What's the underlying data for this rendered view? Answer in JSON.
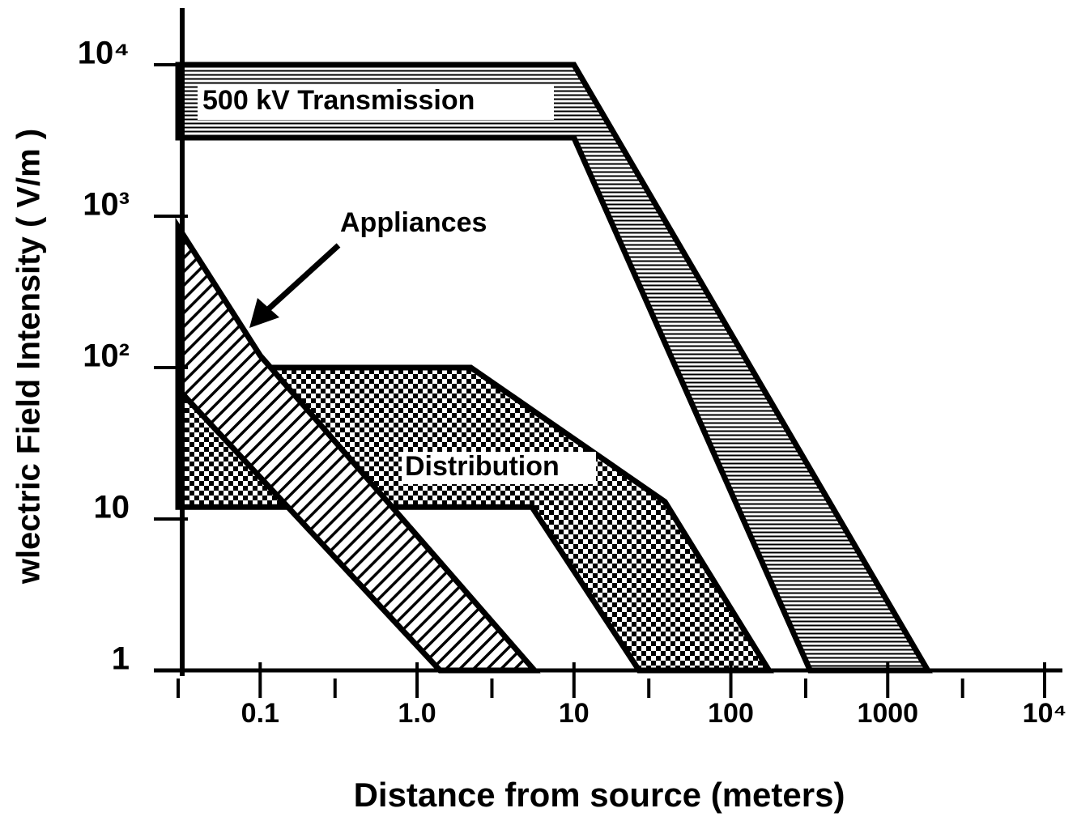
{
  "chart_data": {
    "type": "region",
    "xlabel": "Distance  from  source  (meters)",
    "ylabel": "wlectric  Field  Intensity  ( V/m )",
    "log_x": true,
    "log_y": true,
    "xlim": [
      0.03,
      10000
    ],
    "ylim": [
      1,
      10000
    ],
    "xticks": [
      0.1,
      {
        "value": 1,
        "label": "1.0"
      },
      10,
      100,
      1000,
      {
        "value": 10000,
        "label": "10⁴"
      }
    ],
    "xminorticks": [
      0.03,
      0.3,
      3,
      30,
      300,
      3000
    ],
    "yticks": [
      1,
      10,
      {
        "value": 100,
        "label": "10²"
      },
      {
        "value": 1000,
        "label": "10³"
      },
      {
        "value": 10000,
        "label": "10⁴"
      }
    ],
    "series": [
      {
        "name": "500  kV  Transmission",
        "color": "#000000",
        "pattern": "horizontal",
        "x": [
          0.03,
          10,
          1800,
          320,
          10,
          0.03
        ],
        "values": [
          10000,
          10000,
          1,
          1,
          3300,
          3300
        ]
      },
      {
        "name": "Distribution",
        "color": "#000000",
        "pattern": "checker",
        "x": [
          0.03,
          2.2,
          38,
          175,
          26,
          5.4,
          0.03
        ],
        "values": [
          100,
          100,
          13,
          1,
          1,
          12,
          12
        ]
      },
      {
        "name": "Appliances",
        "color": "#000000",
        "pattern": "diagonal",
        "x": [
          0.03,
          0.1,
          5.6,
          1.4,
          0.03
        ],
        "values": [
          850,
          120,
          1,
          1,
          72
        ]
      }
    ]
  }
}
